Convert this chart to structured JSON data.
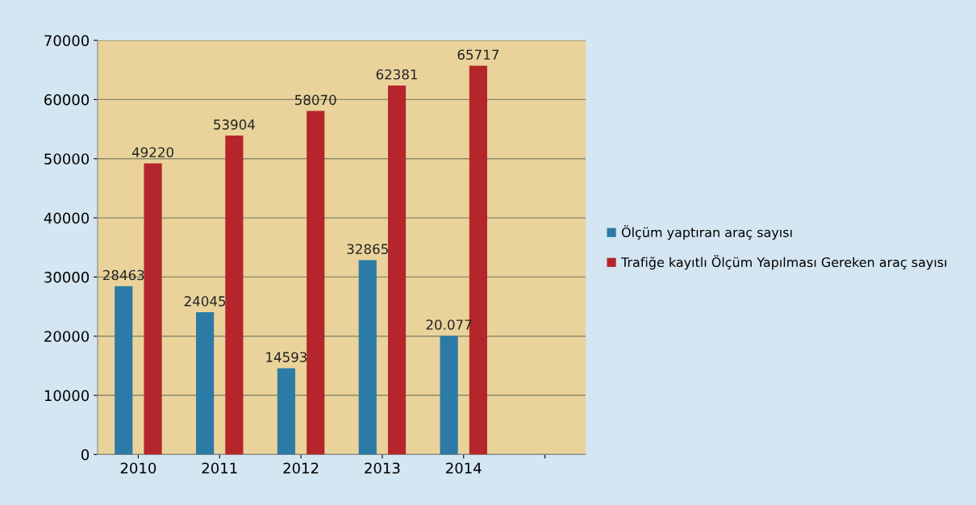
{
  "chart_data": {
    "type": "bar",
    "categories": [
      "2010",
      "2011",
      "2012",
      "2013",
      "2014",
      null
    ],
    "series": [
      {
        "name": "Ölçüm yaptıran araç sayısı",
        "color": "#2b7ba6",
        "values": [
          28463,
          24045,
          14593,
          32865,
          20077,
          null
        ],
        "value_labels": [
          "28463",
          "24045",
          "14593",
          "32865",
          "20.077",
          null
        ]
      },
      {
        "name": "Trafiğe kayıtlı Ölçüm Yapılması Gereken araç sayısı",
        "color": "#b5262c",
        "values": [
          49220,
          53904,
          58070,
          62381,
          65717,
          null
        ],
        "value_labels": [
          "49220",
          "53904",
          "58070",
          "62381",
          "65717",
          null
        ]
      }
    ],
    "ylim": [
      0,
      70000
    ],
    "yticks": [
      0,
      10000,
      20000,
      30000,
      40000,
      50000,
      60000,
      70000
    ],
    "grid": "y",
    "legend": "right"
  }
}
